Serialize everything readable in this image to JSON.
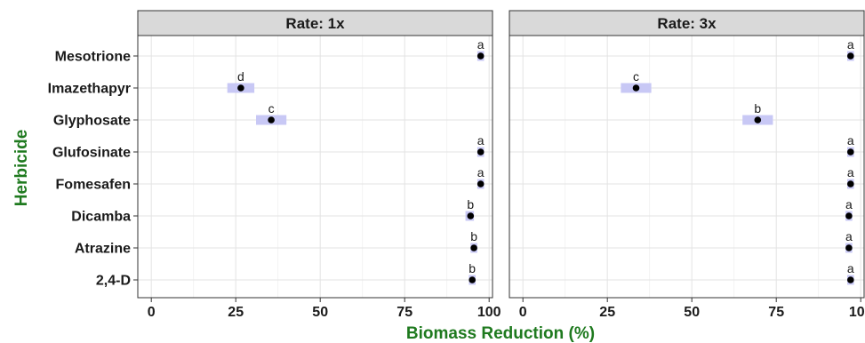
{
  "chart_data": {
    "type": "scatter",
    "xlabel": "Biomass Reduction (%)",
    "ylabel": "Herbicide",
    "xlim": [
      -4,
      101
    ],
    "xticks": [
      0,
      25,
      50,
      75,
      100
    ],
    "categories": [
      "Mesotrione",
      "Imazethapyr",
      "Glyphosate",
      "Glufosinate",
      "Fomesafen",
      "Dicamba",
      "Atrazine",
      "2,4-D"
    ],
    "grid": true,
    "colors": {
      "point": "#000000",
      "ci": "#c8c8f5",
      "title": "#1f7a1f",
      "strip": "#d9d9d9"
    },
    "panels": [
      {
        "name": "Rate: 1x",
        "values": [
          97.5,
          26.5,
          35.5,
          97.5,
          97.5,
          94.5,
          95.5,
          95.0
        ],
        "ci_low": [
          96.5,
          22.5,
          31.0,
          96.5,
          96.5,
          93.0,
          94.5,
          94.0
        ],
        "ci_high": [
          98.5,
          30.5,
          40.0,
          98.5,
          98.5,
          95.5,
          96.5,
          96.0
        ],
        "letters": [
          "a",
          "d",
          "c",
          "a",
          "a",
          "b",
          "b",
          "b"
        ]
      },
      {
        "name": "Rate: 3x",
        "values": [
          97.0,
          33.5,
          69.5,
          97.0,
          97.0,
          96.5,
          96.5,
          97.0
        ],
        "ci_low": [
          96.0,
          29.0,
          65.0,
          96.0,
          96.0,
          95.5,
          95.5,
          96.0
        ],
        "ci_high": [
          98.0,
          38.0,
          74.0,
          98.0,
          98.0,
          97.5,
          97.5,
          98.0
        ],
        "letters": [
          "a",
          "c",
          "b",
          "a",
          "a",
          "a",
          "a",
          "a"
        ]
      }
    ]
  }
}
